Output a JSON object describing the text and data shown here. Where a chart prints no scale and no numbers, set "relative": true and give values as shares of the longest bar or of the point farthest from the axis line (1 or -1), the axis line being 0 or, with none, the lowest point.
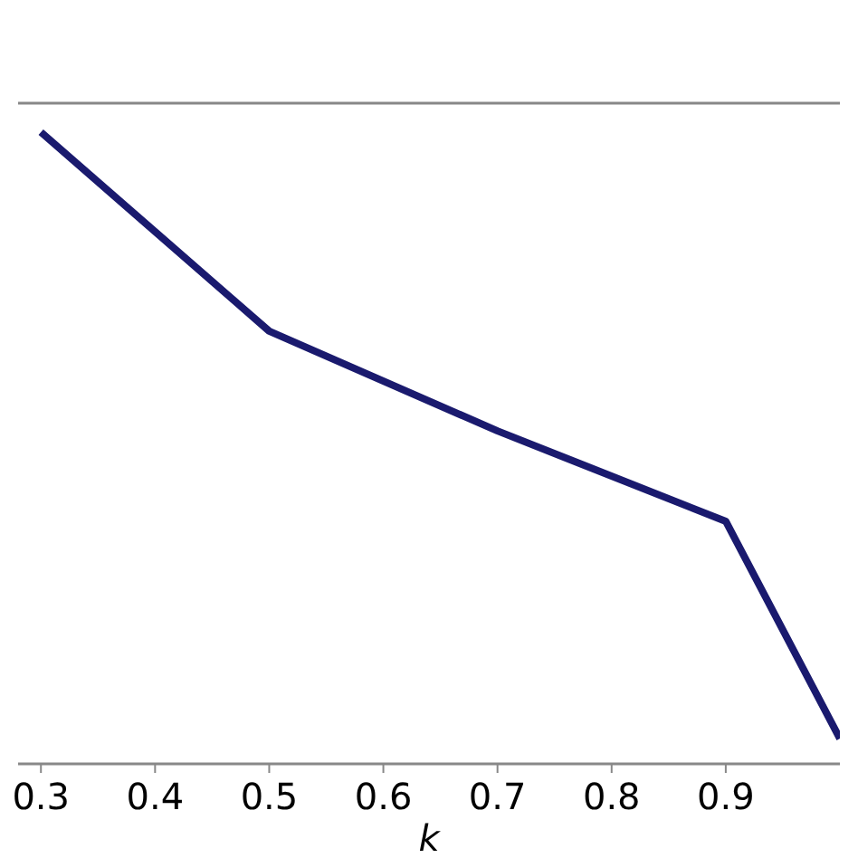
{
  "chart_data": {
    "type": "line",
    "xlabel": "k",
    "relative": true,
    "x": [
      0.3,
      0.5,
      0.7,
      0.9,
      1.0
    ],
    "series": [
      {
        "color": "#1a1a6e",
        "values": [
          1,
          0.685,
          0.527,
          0.384,
          0.04
        ]
      }
    ],
    "xlim": [
      0.28,
      1.0
    ],
    "xticks": [
      0.3,
      0.4,
      0.5,
      0.6,
      0.7,
      0.8,
      0.9
    ],
    "grid": false,
    "marker": "none",
    "line_style": "solid"
  }
}
